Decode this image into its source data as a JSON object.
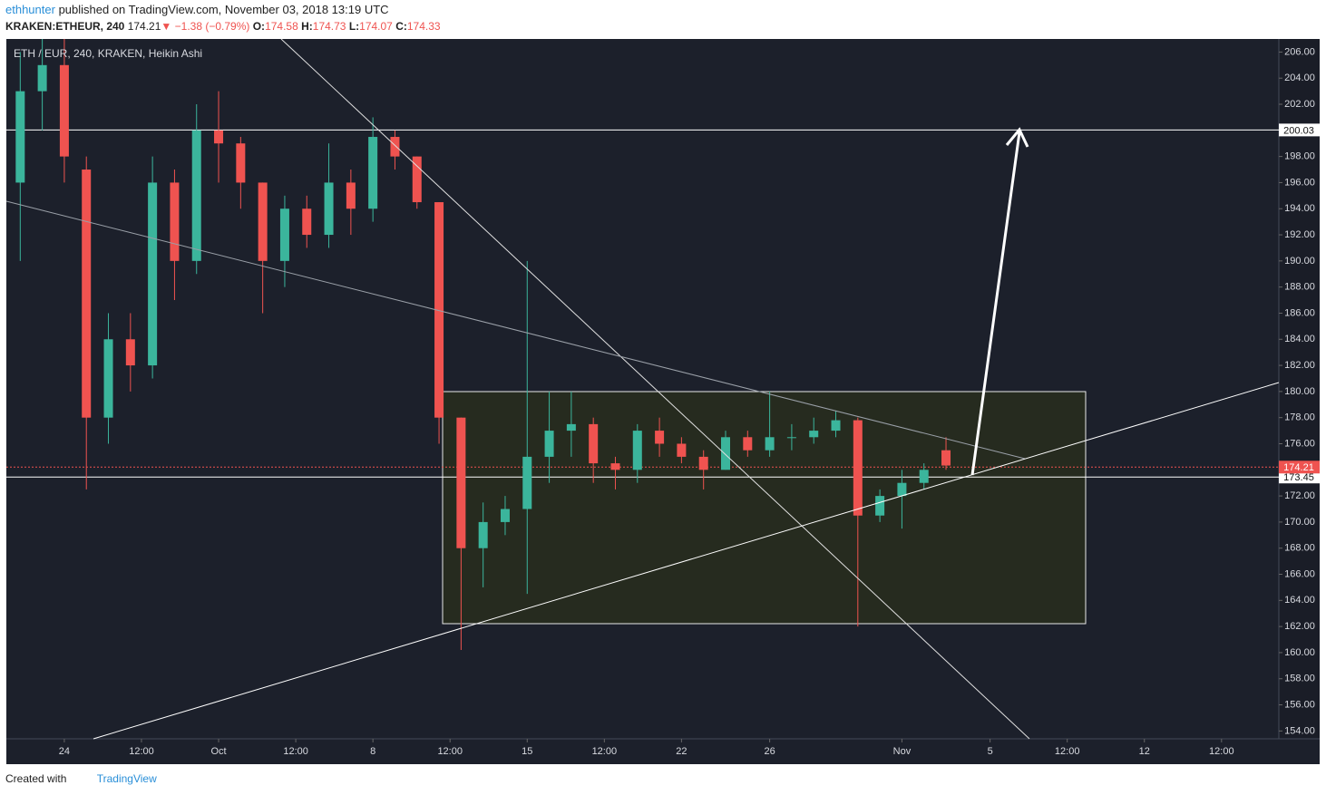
{
  "header": {
    "author": "ethhunter",
    "published": "published on TradingView.com, November 03, 2018 13:19 UTC",
    "symbol": "KRAKEN:ETHEUR, 240",
    "last": "174.21",
    "arrow": "▼",
    "change": "−1.38 (−0.79%)",
    "o_label": "O:",
    "o": "174.58",
    "h_label": "H:",
    "h": "174.73",
    "l_label": "L:",
    "l": "174.07",
    "c_label": "C:",
    "c": "174.33"
  },
  "chart_data": {
    "type": "candlestick",
    "legend": "ETH / EUR, 240, KRAKEN, Heikin Ashi",
    "up_color": "#3bb59c",
    "down_color": "#ef5350",
    "x": [
      -2,
      -1,
      0,
      1,
      2,
      3,
      4,
      5,
      6,
      7,
      8,
      9,
      10,
      11,
      12,
      13,
      14,
      15,
      16,
      17,
      18,
      19,
      20,
      21,
      22,
      23,
      24,
      25,
      26,
      27,
      28,
      29,
      30,
      31,
      32,
      33,
      34,
      35,
      36,
      37,
      38,
      39,
      40
    ],
    "open": [
      196,
      203,
      205,
      197,
      178,
      184,
      182,
      196,
      190,
      200,
      199,
      196,
      190,
      194,
      192,
      196,
      194,
      199.5,
      198,
      194.5,
      178,
      168,
      170,
      171,
      175,
      177,
      177.5,
      174.5,
      174,
      177,
      176,
      175,
      174,
      176.5,
      175.5,
      176.5,
      176.5,
      177,
      177.8,
      170.5,
      172,
      173,
      175.5
    ],
    "high": [
      206,
      207,
      207,
      198,
      186,
      186,
      198,
      197,
      202,
      203,
      199.5,
      196,
      195,
      195,
      199,
      197,
      201,
      200,
      198,
      194.5,
      178,
      171.5,
      172,
      190,
      180,
      180,
      178,
      175,
      177.5,
      178,
      176.5,
      175.5,
      177,
      177,
      180,
      177.5,
      178,
      178.5,
      178,
      172.5,
      174,
      174.5,
      176.5
    ],
    "low": [
      190,
      200,
      196,
      172.5,
      176,
      180,
      181,
      187,
      189,
      196,
      194,
      186,
      188,
      191,
      191,
      192,
      193,
      197,
      194,
      176,
      160.2,
      165,
      169,
      164.5,
      173,
      175,
      173,
      172.5,
      173,
      175,
      174.5,
      172.5,
      174,
      175,
      175,
      175.5,
      176,
      176.5,
      162,
      170,
      169.5,
      172.5,
      174
    ],
    "close": [
      203,
      205,
      198,
      178,
      184,
      182,
      196,
      190,
      200,
      199,
      196,
      190,
      194,
      192,
      196,
      194,
      199.5,
      198,
      194.5,
      178,
      168,
      170,
      171,
      175,
      177,
      177.5,
      174.5,
      174,
      177,
      176,
      175,
      174,
      176.5,
      175.5,
      176.5,
      176.5,
      177,
      177.8,
      170.5,
      172,
      173,
      174,
      174.33
    ],
    "xlim": [
      -2.63,
      55.1
    ],
    "xticks": [
      {
        "value": 0,
        "label": "24"
      },
      {
        "value": 3.5,
        "label": "12:00"
      },
      {
        "value": 7,
        "label": "Oct"
      },
      {
        "value": 10.5,
        "label": "12:00"
      },
      {
        "value": 14,
        "label": "8"
      },
      {
        "value": 17.5,
        "label": "12:00"
      },
      {
        "value": 21,
        "label": "15"
      },
      {
        "value": 24.5,
        "label": "12:00"
      },
      {
        "value": 28,
        "label": "22"
      },
      {
        "value": 32,
        "label": "26"
      },
      {
        "value": 38,
        "label": "Nov"
      },
      {
        "value": 42,
        "label": "5"
      },
      {
        "value": 45.5,
        "label": "12:00"
      },
      {
        "value": 49,
        "label": "12"
      },
      {
        "value": 52.5,
        "label": "12:00"
      }
    ],
    "ylim": [
      153.4,
      207
    ],
    "yticks": [
      {
        "value": 154,
        "label": "154.00"
      },
      {
        "value": 156,
        "label": "156.00"
      },
      {
        "value": 158,
        "label": "158.00"
      },
      {
        "value": 160,
        "label": "160.00"
      },
      {
        "value": 162,
        "label": "162.00"
      },
      {
        "value": 164,
        "label": "164.00"
      },
      {
        "value": 166,
        "label": "166.00"
      },
      {
        "value": 168,
        "label": "168.00"
      },
      {
        "value": 170,
        "label": "170.00"
      },
      {
        "value": 172,
        "label": "172.00"
      },
      {
        "value": 176,
        "label": "176.00"
      },
      {
        "value": 178,
        "label": "178.00"
      },
      {
        "value": 180,
        "label": "180.00"
      },
      {
        "value": 182,
        "label": "182.00"
      },
      {
        "value": 184,
        "label": "184.00"
      },
      {
        "value": 186,
        "label": "186.00"
      },
      {
        "value": 188,
        "label": "188.00"
      },
      {
        "value": 190,
        "label": "190.00"
      },
      {
        "value": 192,
        "label": "192.00"
      },
      {
        "value": 194,
        "label": "194.00"
      },
      {
        "value": 196,
        "label": "196.00"
      },
      {
        "value": 198,
        "label": "198.00"
      },
      {
        "value": 202,
        "label": "202.00"
      },
      {
        "value": 204,
        "label": "204.00"
      },
      {
        "value": 206,
        "label": "206.00"
      }
    ],
    "price_lines": [
      {
        "value": 200.03,
        "color": "#ffffff"
      },
      {
        "value": 173.45,
        "color": "#ffffff"
      },
      {
        "value": 174.21,
        "color": "#ef5350"
      }
    ]
  },
  "footer": {
    "created": "Created with",
    "brand": "TradingView"
  }
}
